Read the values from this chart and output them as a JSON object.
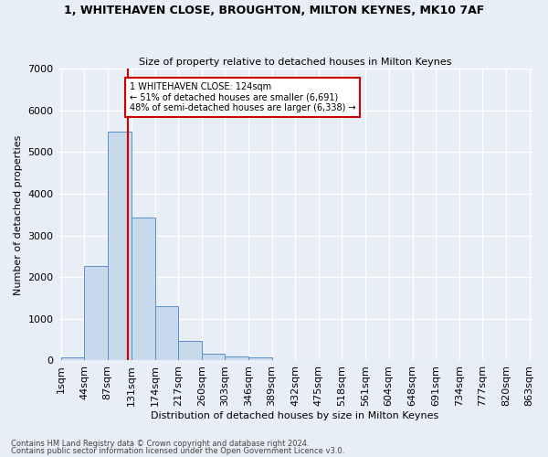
{
  "title": "1, WHITEHAVEN CLOSE, BROUGHTON, MILTON KEYNES, MK10 7AF",
  "subtitle": "Size of property relative to detached houses in Milton Keynes",
  "xlabel": "Distribution of detached houses by size in Milton Keynes",
  "ylabel": "Number of detached properties",
  "footnote1": "Contains HM Land Registry data © Crown copyright and database right 2024.",
  "footnote2": "Contains public sector information licensed under the Open Government Licence v3.0.",
  "bin_edges": [
    1,
    44,
    87,
    131,
    174,
    217,
    260,
    303,
    346,
    389,
    432,
    475,
    518,
    561,
    604,
    648,
    691,
    734,
    777,
    820,
    863
  ],
  "bin_heights": [
    75,
    2270,
    5500,
    3420,
    1310,
    460,
    165,
    90,
    75,
    0,
    0,
    0,
    0,
    0,
    0,
    0,
    0,
    0,
    0,
    0
  ],
  "bar_color": "#c9d9ec",
  "bar_edge_color": "#5b8fc9",
  "property_value": 124,
  "vline_color": "#cc0000",
  "annotation_text": "1 WHITEHAVEN CLOSE: 124sqm\n← 51% of detached houses are smaller (6,691)\n48% of semi-detached houses are larger (6,338) →",
  "annotation_box_color": "white",
  "annotation_box_edge": "#cc0000",
  "ylim": [
    0,
    7000
  ],
  "bg_color": "#e8eef5",
  "grid_color": "white"
}
